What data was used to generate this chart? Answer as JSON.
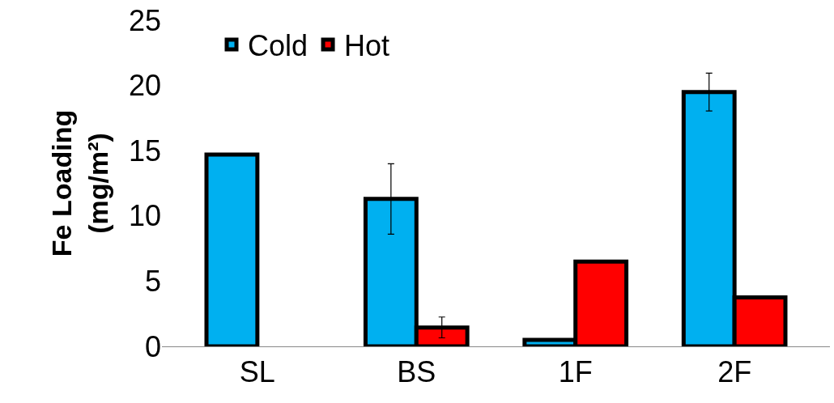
{
  "chart_data": {
    "type": "bar",
    "ylabel": "Fe Loading\n(mg/m²)",
    "categories": [
      "SL",
      "BS",
      "1F",
      "2F"
    ],
    "series": [
      {
        "name": "Cold",
        "color": "#00b0f0",
        "values": [
          14.7,
          11.3,
          0.5,
          19.5
        ],
        "errors": [
          null,
          2.7,
          null,
          1.45
        ]
      },
      {
        "name": "Hot",
        "color": "#ff0000",
        "values": [
          null,
          1.45,
          6.5,
          3.75
        ],
        "errors": [
          null,
          0.8,
          null,
          null
        ]
      }
    ],
    "ylim": [
      0,
      25
    ],
    "yticks": [
      0,
      5,
      10,
      15,
      20,
      25
    ],
    "legend": "top left"
  }
}
